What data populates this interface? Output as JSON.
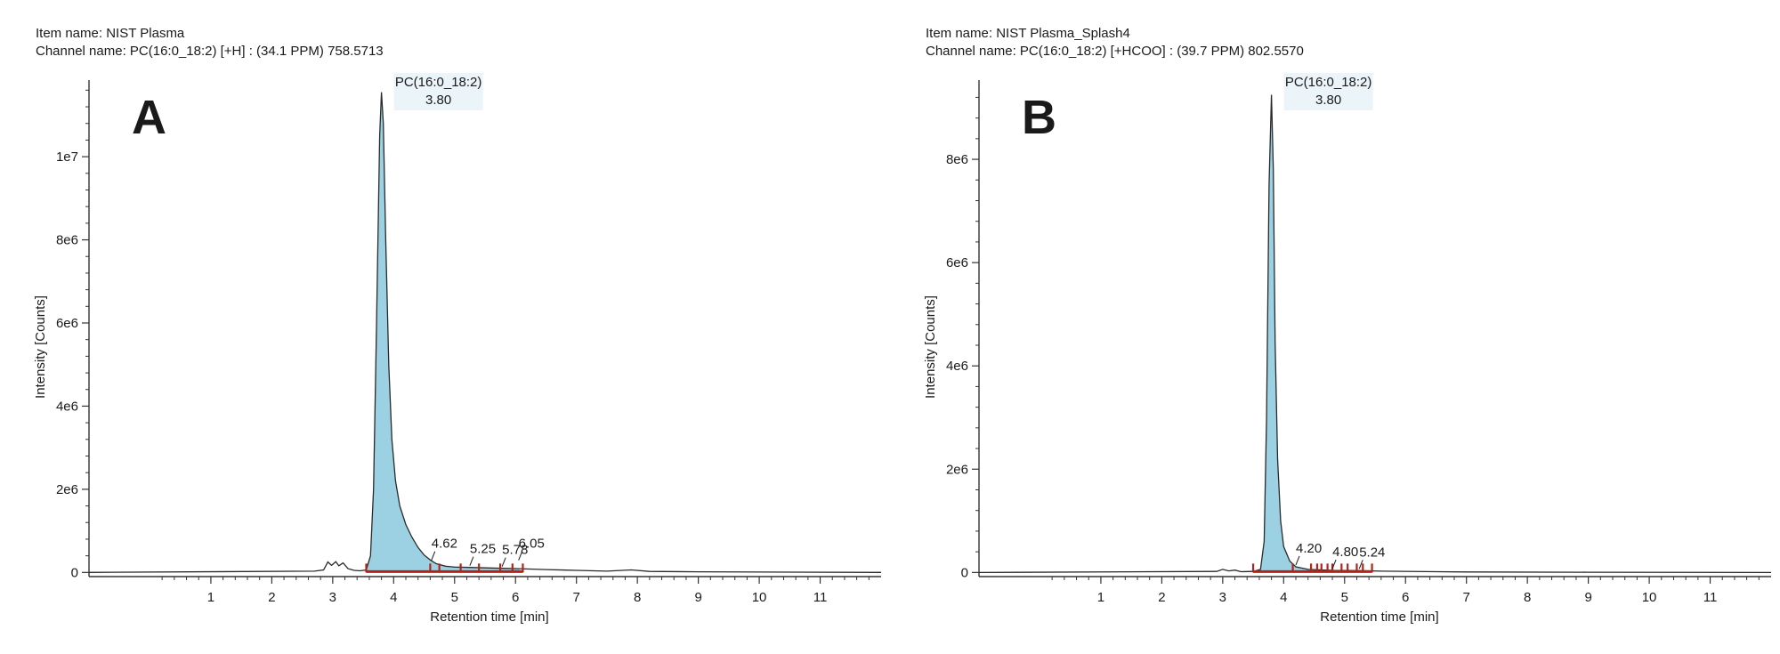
{
  "chart_data": [
    {
      "type": "line",
      "panel_letter": "A",
      "item_line": "Item name: NIST Plasma",
      "channel_line": "Channel name: PC(16:0_18:2) [+H] : (34.1 PPM) 758.5713",
      "xlabel": "Retention time [min]",
      "ylabel": "Intensity [Counts]",
      "xlim": [
        -1.0,
        12.0
      ],
      "ylim": [
        -100000.0,
        11800000.0
      ],
      "x_ticks": [
        1,
        2,
        3,
        4,
        5,
        6,
        7,
        8,
        9,
        10,
        11
      ],
      "y_ticks": [
        0,
        2000000,
        4000000,
        6000000,
        8000000,
        10000000
      ],
      "y_tick_labels": [
        "0",
        "2e6",
        "4e6",
        "6e6",
        "8e6",
        "1e7"
      ],
      "x_tick_labels": [
        "1",
        "2",
        "3",
        "4",
        "5",
        "6",
        "7",
        "8",
        "9",
        "10",
        "11"
      ],
      "main_peak": {
        "name": "PC(16:0_18:2)",
        "rt": "3.80",
        "rt_value": 3.8,
        "apex": 11550000.0,
        "start": 3.55,
        "end": 6.12
      },
      "trace": [
        [
          -1.0,
          0
        ],
        [
          2.7,
          30000
        ],
        [
          2.85,
          60000
        ],
        [
          2.92,
          250000
        ],
        [
          2.98,
          170000
        ],
        [
          3.05,
          260000
        ],
        [
          3.1,
          160000
        ],
        [
          3.17,
          230000
        ],
        [
          3.25,
          90000
        ],
        [
          3.35,
          50000
        ],
        [
          3.45,
          40000
        ],
        [
          3.55,
          60000
        ],
        [
          3.62,
          400000
        ],
        [
          3.67,
          2000000
        ],
        [
          3.72,
          6000000
        ],
        [
          3.77,
          10500000
        ],
        [
          3.8,
          11550000
        ],
        [
          3.83,
          10800000
        ],
        [
          3.87,
          8000000
        ],
        [
          3.92,
          5000000
        ],
        [
          3.97,
          3200000
        ],
        [
          4.03,
          2200000
        ],
        [
          4.1,
          1600000
        ],
        [
          4.2,
          1150000
        ],
        [
          4.3,
          850000
        ],
        [
          4.4,
          600000
        ],
        [
          4.5,
          420000
        ],
        [
          4.6,
          300000
        ],
        [
          4.7,
          210000
        ],
        [
          4.85,
          150000
        ],
        [
          5.0,
          130000
        ],
        [
          5.25,
          120000
        ],
        [
          5.5,
          110000
        ],
        [
          5.78,
          100000
        ],
        [
          6.05,
          90000
        ],
        [
          6.5,
          70000
        ],
        [
          7.0,
          50000
        ],
        [
          7.5,
          30000
        ],
        [
          7.9,
          60000
        ],
        [
          8.2,
          25000
        ],
        [
          9.0,
          15000
        ],
        [
          10.0,
          10000
        ],
        [
          12.0,
          0
        ]
      ],
      "minor_peaks": [
        {
          "rt": 4.62,
          "label": "4.62",
          "height": 250000
        },
        {
          "rt": 5.25,
          "label": "5.25",
          "height": 120000
        },
        {
          "rt": 5.78,
          "label": "5.78",
          "height": 100000
        },
        {
          "rt": 6.05,
          "label": "6.05",
          "height": 250000
        }
      ],
      "integration_marks": [
        3.55,
        4.6,
        4.75,
        5.1,
        5.4,
        5.75,
        5.95,
        6.12
      ]
    },
    {
      "type": "line",
      "panel_letter": "B",
      "item_line": "Item name: NIST Plasma_Splash4",
      "channel_line": "Channel name: PC(16:0_18:2) [+HCOO] : (39.7 PPM) 802.5570",
      "xlabel": "Retention time [min]",
      "ylabel": "Intensity [Counts]",
      "xlim": [
        -1.0,
        12.0
      ],
      "ylim": [
        -80000.0,
        9500000.0
      ],
      "x_ticks": [
        1,
        2,
        3,
        4,
        5,
        6,
        7,
        8,
        9,
        10,
        11
      ],
      "y_ticks": [
        0,
        2000000,
        4000000,
        6000000,
        8000000
      ],
      "y_tick_labels": [
        "0",
        "2e6",
        "4e6",
        "6e6",
        "8e6"
      ],
      "x_tick_labels": [
        "1",
        "2",
        "3",
        "4",
        "5",
        "6",
        "7",
        "8",
        "9",
        "10",
        "11"
      ],
      "main_peak": {
        "name": "PC(16:0_18:2)",
        "rt": "3.80",
        "rt_value": 3.8,
        "apex": 9250000.0,
        "start": 3.5,
        "end": 5.45
      },
      "trace": [
        [
          -1.0,
          0
        ],
        [
          2.9,
          20000
        ],
        [
          3.0,
          60000
        ],
        [
          3.1,
          30000
        ],
        [
          3.2,
          45000
        ],
        [
          3.3,
          15000
        ],
        [
          3.5,
          20000
        ],
        [
          3.62,
          60000
        ],
        [
          3.68,
          600000
        ],
        [
          3.72,
          3000000
        ],
        [
          3.76,
          7500000
        ],
        [
          3.8,
          9250000
        ],
        [
          3.83,
          7800000
        ],
        [
          3.86,
          4500000
        ],
        [
          3.9,
          2200000
        ],
        [
          3.95,
          1000000
        ],
        [
          4.0,
          500000
        ],
        [
          4.1,
          220000
        ],
        [
          4.2,
          110000
        ],
        [
          4.4,
          60000
        ],
        [
          4.8,
          40000
        ],
        [
          5.24,
          35000
        ],
        [
          5.6,
          25000
        ],
        [
          6.5,
          15000
        ],
        [
          7.0,
          10000
        ],
        [
          9.0,
          5000
        ],
        [
          12.0,
          0
        ]
      ],
      "minor_peaks": [
        {
          "rt": 4.2,
          "label": "4.20",
          "height": 110000
        },
        {
          "rt": 4.8,
          "label": "4.80",
          "height": 40000
        },
        {
          "rt": 5.24,
          "label": "5.24",
          "height": 35000
        }
      ],
      "integration_marks": [
        3.5,
        4.15,
        4.45,
        4.55,
        4.62,
        4.72,
        4.8,
        4.95,
        5.05,
        5.2,
        5.3,
        5.45
      ]
    }
  ],
  "style": {
    "fill_color": "#9cd1e3",
    "fill_edge": "#2a2a2a",
    "trace_color": "#2a2a2a",
    "integration_color": "#b22418",
    "label_box_color": "#eaf4f9",
    "axis_color": "#333333"
  }
}
